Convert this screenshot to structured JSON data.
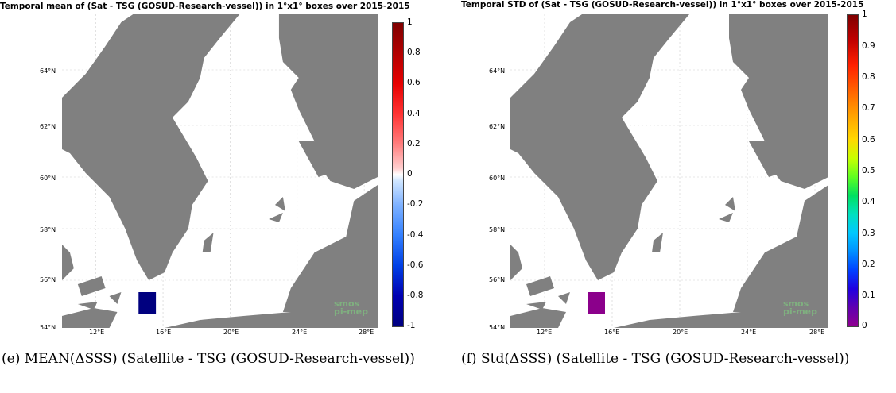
{
  "panels": [
    {
      "id": "e",
      "title": "Temporal mean of (Sat - TSG (GOSUD-Research-vessel)) in 1°x1° boxes over 2015-2015",
      "y_ticks": [
        "64°N",
        "62°N",
        "60°N",
        "58°N",
        "56°N",
        "54°N"
      ],
      "x_ticks": [
        "12°E",
        "16°E",
        "20°E",
        "24°E",
        "28°E"
      ],
      "colorbar_ticks": [
        "1",
        "0.8",
        "0.6",
        "0.4",
        "0.2",
        "0",
        "-0.2",
        "-0.4",
        "-0.6",
        "-0.8",
        "-1"
      ],
      "box_color": "#00007f",
      "caption": "(e) MEAN(ΔSSS) (Satellite - TSG (GOSUD-Research-vessel))"
    },
    {
      "id": "f",
      "title": "Temporal STD of (Sat - TSG (GOSUD-Research-vessel)) in 1°x1° boxes over 2015-2015",
      "y_ticks": [
        "64°N",
        "62°N",
        "60°N",
        "58°N",
        "56°N",
        "54°N"
      ],
      "x_ticks": [
        "12°E",
        "16°E",
        "20°E",
        "24°E",
        "28°E"
      ],
      "colorbar_ticks": [
        "1",
        "0.9",
        "0.8",
        "0.7",
        "0.6",
        "0.5",
        "0.4",
        "0.3",
        "0.2",
        "0.1",
        "0"
      ],
      "box_color": "#8b008b",
      "caption": "(f) Std(ΔSSS) (Satellite - TSG (GOSUD-Research-vessel))"
    }
  ],
  "logo": {
    "line1": "smos",
    "line2": "pi-mep"
  },
  "colors": {
    "land": "#808080",
    "sea": "#ffffff"
  }
}
